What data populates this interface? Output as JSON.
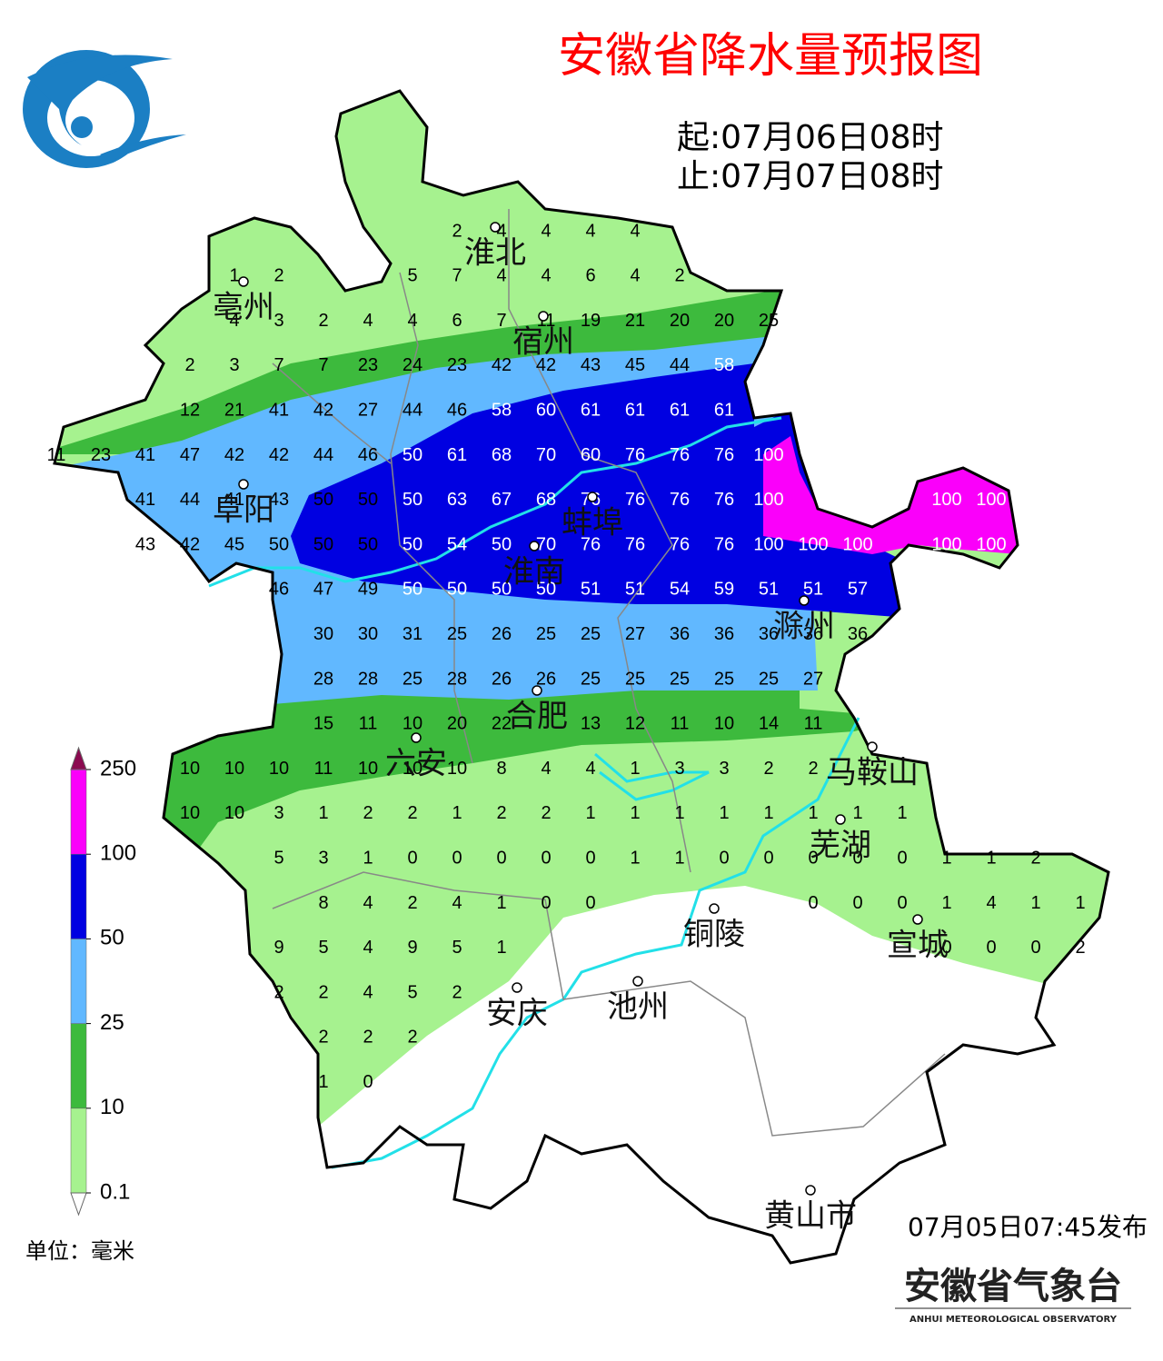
{
  "title": "安徽省降水量预报图",
  "period": {
    "start": "起:07月06日08时",
    "end": "止:07月07日08时"
  },
  "legend": {
    "levels": [
      0.1,
      10,
      25,
      50,
      100,
      250
    ],
    "colors": [
      "#a6f28f",
      "#3dba3d",
      "#61b8ff",
      "#0000e1",
      "#fa00fa"
    ],
    "unit": "单位：毫米"
  },
  "cities": [
    "淮北",
    "亳州",
    "宿州",
    "阜阳",
    "蚌埠",
    "淮南",
    "滁州",
    "合肥",
    "六安",
    "马鞍山",
    "芜湖",
    "铜陵",
    "宣城",
    "安庆",
    "池州",
    "黄山市"
  ],
  "grid": [
    [
      null,
      null,
      null,
      null,
      null,
      null,
      null,
      null,
      null,
      null,
      2,
      4,
      4,
      4,
      4
    ],
    [
      null,
      null,
      null,
      null,
      null,
      1,
      2,
      null,
      null,
      5,
      7,
      4,
      4,
      6,
      4,
      2
    ],
    [
      null,
      null,
      null,
      null,
      null,
      4,
      3,
      2,
      4,
      4,
      6,
      7,
      11,
      19,
      21,
      20,
      20,
      25
    ],
    [
      null,
      null,
      null,
      null,
      2,
      3,
      7,
      7,
      23,
      24,
      23,
      42,
      42,
      43,
      45,
      44,
      58
    ],
    [
      null,
      null,
      null,
      null,
      12,
      21,
      41,
      42,
      27,
      44,
      46,
      58,
      60,
      61,
      61,
      61,
      61
    ],
    [
      null,
      11,
      23,
      41,
      47,
      42,
      42,
      44,
      46,
      50,
      61,
      68,
      70,
      60,
      76,
      76,
      76,
      100
    ],
    [
      null,
      null,
      null,
      41,
      44,
      41,
      43,
      50,
      50,
      50,
      63,
      67,
      68,
      76,
      76,
      76,
      76,
      100,
      null,
      null,
      null,
      100,
      100
    ],
    [
      null,
      null,
      null,
      43,
      42,
      45,
      50,
      50,
      50,
      50,
      54,
      50,
      70,
      76,
      76,
      76,
      76,
      100,
      100,
      100,
      null,
      100,
      100
    ],
    [
      null,
      null,
      null,
      null,
      null,
      null,
      46,
      47,
      49,
      50,
      50,
      50,
      50,
      51,
      51,
      54,
      59,
      51,
      51,
      57
    ],
    [
      null,
      null,
      null,
      null,
      null,
      null,
      null,
      30,
      30,
      31,
      25,
      26,
      25,
      25,
      27,
      36,
      36,
      36,
      36,
      36
    ],
    [
      null,
      null,
      null,
      null,
      null,
      null,
      null,
      28,
      28,
      25,
      28,
      26,
      26,
      25,
      25,
      25,
      25,
      25,
      27
    ],
    [
      null,
      null,
      null,
      null,
      null,
      null,
      null,
      15,
      11,
      10,
      20,
      22,
      null,
      13,
      12,
      11,
      10,
      14,
      11
    ],
    [
      null,
      null,
      null,
      null,
      10,
      10,
      10,
      11,
      10,
      10,
      10,
      8,
      4,
      4,
      1,
      3,
      3,
      2,
      2
    ],
    [
      null,
      null,
      null,
      null,
      10,
      10,
      3,
      1,
      2,
      2,
      1,
      2,
      2,
      1,
      1,
      1,
      1,
      1,
      1,
      1,
      1
    ],
    [
      null,
      null,
      null,
      null,
      null,
      null,
      5,
      3,
      1,
      0,
      0,
      0,
      0,
      0,
      1,
      1,
      0,
      0,
      0,
      0,
      0,
      1,
      1,
      2
    ],
    [
      null,
      null,
      null,
      null,
      null,
      null,
      null,
      8,
      4,
      2,
      4,
      1,
      0,
      0,
      null,
      null,
      null,
      null,
      0,
      0,
      0,
      1,
      4,
      1,
      1
    ],
    [
      null,
      null,
      null,
      null,
      null,
      null,
      9,
      5,
      4,
      9,
      5,
      1,
      null,
      null,
      null,
      null,
      null,
      null,
      null,
      null,
      null,
      0,
      0,
      0,
      2
    ],
    [
      null,
      null,
      null,
      null,
      null,
      null,
      2,
      2,
      4,
      5,
      2
    ],
    [
      null,
      null,
      null,
      null,
      null,
      null,
      null,
      2,
      2,
      2
    ],
    [
      null,
      null,
      null,
      null,
      null,
      null,
      null,
      1,
      0
    ]
  ],
  "issued": "07月05日07:45发布",
  "agency": {
    "name": "安徽省气象台",
    "english": "ANHUI METEOROLOGICAL OBSERVATORY"
  }
}
